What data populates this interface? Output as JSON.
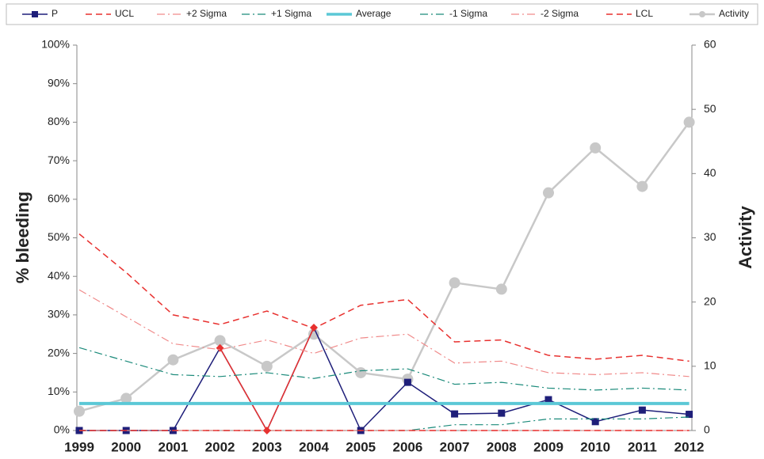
{
  "chart_data": {
    "type": "line",
    "categories": [
      "1999",
      "2000",
      "2001",
      "2002",
      "2003",
      "2004",
      "2005",
      "2006",
      "2007",
      "2008",
      "2009",
      "2010",
      "2011",
      "2012"
    ],
    "y_label": "% bleeding",
    "y2_label": "Activity",
    "ylim": [
      0,
      100
    ],
    "yticks": [
      {
        "value": 0,
        "label": "0%"
      },
      {
        "value": 10,
        "label": "10%"
      },
      {
        "value": 20,
        "label": "20%"
      },
      {
        "value": 30,
        "label": "30%"
      },
      {
        "value": 40,
        "label": "40%"
      },
      {
        "value": 50,
        "label": "50%"
      },
      {
        "value": 60,
        "label": "60%"
      },
      {
        "value": 70,
        "label": "70%"
      },
      {
        "value": 80,
        "label": "80%"
      },
      {
        "value": 90,
        "label": "90%"
      },
      {
        "value": 100,
        "label": "100%"
      }
    ],
    "y2lim": [
      0,
      60
    ],
    "y2ticks": [
      0,
      10,
      20,
      30,
      40,
      50,
      60
    ],
    "legend": "top",
    "series": [
      {
        "name": "P",
        "color": "#1f1f7a",
        "dash": "solid",
        "width": 1.5,
        "marker": "square",
        "marker_colors": [
          "#1f1f7a",
          "#1f1f7a",
          "#1f1f7a",
          "#e8312f",
          "#e8312f",
          "#e8312f",
          "#1f1f7a",
          "#1f1f7a",
          "#1f1f7a",
          "#1f1f7a",
          "#1f1f7a",
          "#1f1f7a",
          "#1f1f7a",
          "#1f1f7a"
        ],
        "values": [
          0,
          0,
          0,
          21.4,
          0,
          26.7,
          0,
          12.5,
          4.3,
          4.5,
          8,
          2.3,
          5.3,
          4.2
        ]
      },
      {
        "name": "UCL",
        "color": "#e8312f",
        "dash": "dashed",
        "width": 1.5,
        "marker": "none",
        "values": [
          51,
          41,
          30,
          27.5,
          31,
          26.5,
          32.5,
          34,
          23,
          23.5,
          19.5,
          18.5,
          19.5,
          18
        ]
      },
      {
        "name": "+2 Sigma",
        "color": "#f08a8a",
        "dash": "dashdot",
        "width": 1.2,
        "marker": "none",
        "values": [
          36.5,
          29.5,
          22.5,
          21,
          23.5,
          20,
          24,
          25,
          17.5,
          18,
          15,
          14.5,
          15,
          14
        ]
      },
      {
        "name": "+1 Sigma",
        "color": "#1a8a7a",
        "dash": "dashdot",
        "width": 1.2,
        "marker": "none",
        "values": [
          21.5,
          18,
          14.5,
          14,
          15,
          13.5,
          15.5,
          16,
          12,
          12.5,
          11,
          10.5,
          11,
          10.5
        ]
      },
      {
        "name": "Average",
        "color": "#5bc8d6",
        "dash": "solid",
        "width": 4,
        "marker": "none",
        "values": [
          7,
          7,
          7,
          7,
          7,
          7,
          7,
          7,
          7,
          7,
          7,
          7,
          7,
          7
        ]
      },
      {
        "name": "-1 Sigma",
        "color": "#1a8a7a",
        "dash": "dashdot",
        "width": 1.2,
        "marker": "none",
        "values": [
          0,
          0,
          0,
          0,
          0,
          0,
          0,
          0,
          1.5,
          1.5,
          3,
          3,
          3,
          3.5
        ]
      },
      {
        "name": "-2 Sigma",
        "color": "#f08a8a",
        "dash": "dashdot",
        "width": 1.2,
        "marker": "none",
        "values": [
          0,
          0,
          0,
          0,
          0,
          0,
          0,
          0,
          0,
          0,
          0,
          0,
          0,
          0
        ]
      },
      {
        "name": "LCL",
        "color": "#e8312f",
        "dash": "dashed",
        "width": 1.5,
        "marker": "none",
        "values": [
          0,
          0,
          0,
          0,
          0,
          0,
          0,
          0,
          0,
          0,
          0,
          0,
          0,
          0
        ]
      },
      {
        "name": "Activity",
        "color": "#c8c8c8",
        "dash": "solid",
        "width": 2.5,
        "marker": "circle",
        "axis": "y2",
        "values": [
          3,
          5,
          11,
          14,
          10,
          15,
          9,
          8,
          23,
          22,
          37,
          44,
          38,
          48
        ]
      }
    ]
  }
}
